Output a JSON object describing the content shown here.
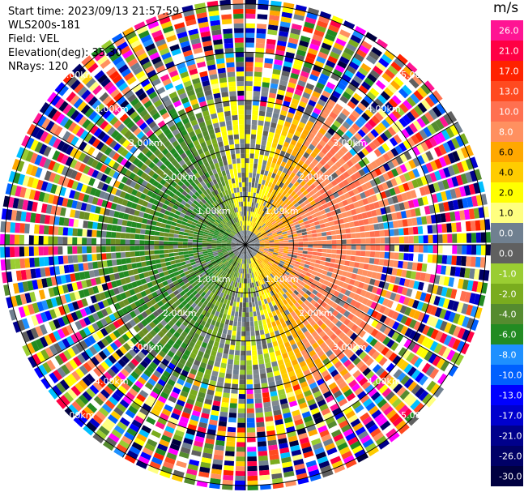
{
  "header": {
    "start_time": "Start time: 2023/09/13 21:57:59",
    "instrument": "WLS200s-181",
    "field": "Field: VEL",
    "elevation": "Elevation(deg): 35.30",
    "nrays": "NRays: 120"
  },
  "colorbar": {
    "unit": "m/s",
    "bins": [
      {
        "label": "26.0",
        "color": "#ff1493"
      },
      {
        "label": "21.0",
        "color": "#ff0044"
      },
      {
        "label": "17.0",
        "color": "#ff2200"
      },
      {
        "label": "13.0",
        "color": "#ff4a20"
      },
      {
        "label": "10.0",
        "color": "#ff7050"
      },
      {
        "label": "8.0",
        "color": "#ff9060"
      },
      {
        "label": "6.0",
        "color": "#ffa800"
      },
      {
        "label": "4.0",
        "color": "#ffcc00"
      },
      {
        "label": "2.0",
        "color": "#ffff00"
      },
      {
        "label": "1.0",
        "color": "#ffff80"
      },
      {
        "label": "0.0",
        "color": "#708090"
      },
      {
        "label": "0.0",
        "color": "#606060"
      },
      {
        "label": "-1.0",
        "color": "#9acd32"
      },
      {
        "label": "-2.0",
        "color": "#7aac1e"
      },
      {
        "label": "-4.0",
        "color": "#558b2f"
      },
      {
        "label": "-6.0",
        "color": "#228b22"
      },
      {
        "label": "-8.0",
        "color": "#1e90ff"
      },
      {
        "label": "-10.0",
        "color": "#0060ff"
      },
      {
        "label": "-13.0",
        "color": "#0000ff"
      },
      {
        "label": "-17.0",
        "color": "#0000cd"
      },
      {
        "label": "-21.0",
        "color": "#00008b"
      },
      {
        "label": "-26.0",
        "color": "#000066"
      },
      {
        "label": "-30.0",
        "color": "#000040"
      }
    ]
  },
  "chart_data": {
    "type": "heatmap",
    "title": "",
    "xlabel": "",
    "ylabel": "",
    "field": "VEL",
    "n_rays": 120,
    "range_rings": [
      {
        "label": "1.00km",
        "range_km": 1
      },
      {
        "label": "2.00km",
        "range_km": 2
      },
      {
        "label": "3.00km",
        "range_km": 3
      },
      {
        "label": "4.00km",
        "range_km": 4
      },
      {
        "label": "5.00km",
        "range_km": 5
      }
    ],
    "max_range_km": 5.1,
    "ring_label_azimuths_deg": [
      315,
      45,
      135,
      225
    ],
    "grid_line_azimuths_deg": [
      0,
      30,
      60,
      90,
      120,
      150
    ],
    "velocity_pattern": {
      "east_sector": "positive 2 to 8 m/s",
      "west_sector": "negative -1 to -6 m/s",
      "outer_ranges": "noisy, full color range"
    }
  }
}
